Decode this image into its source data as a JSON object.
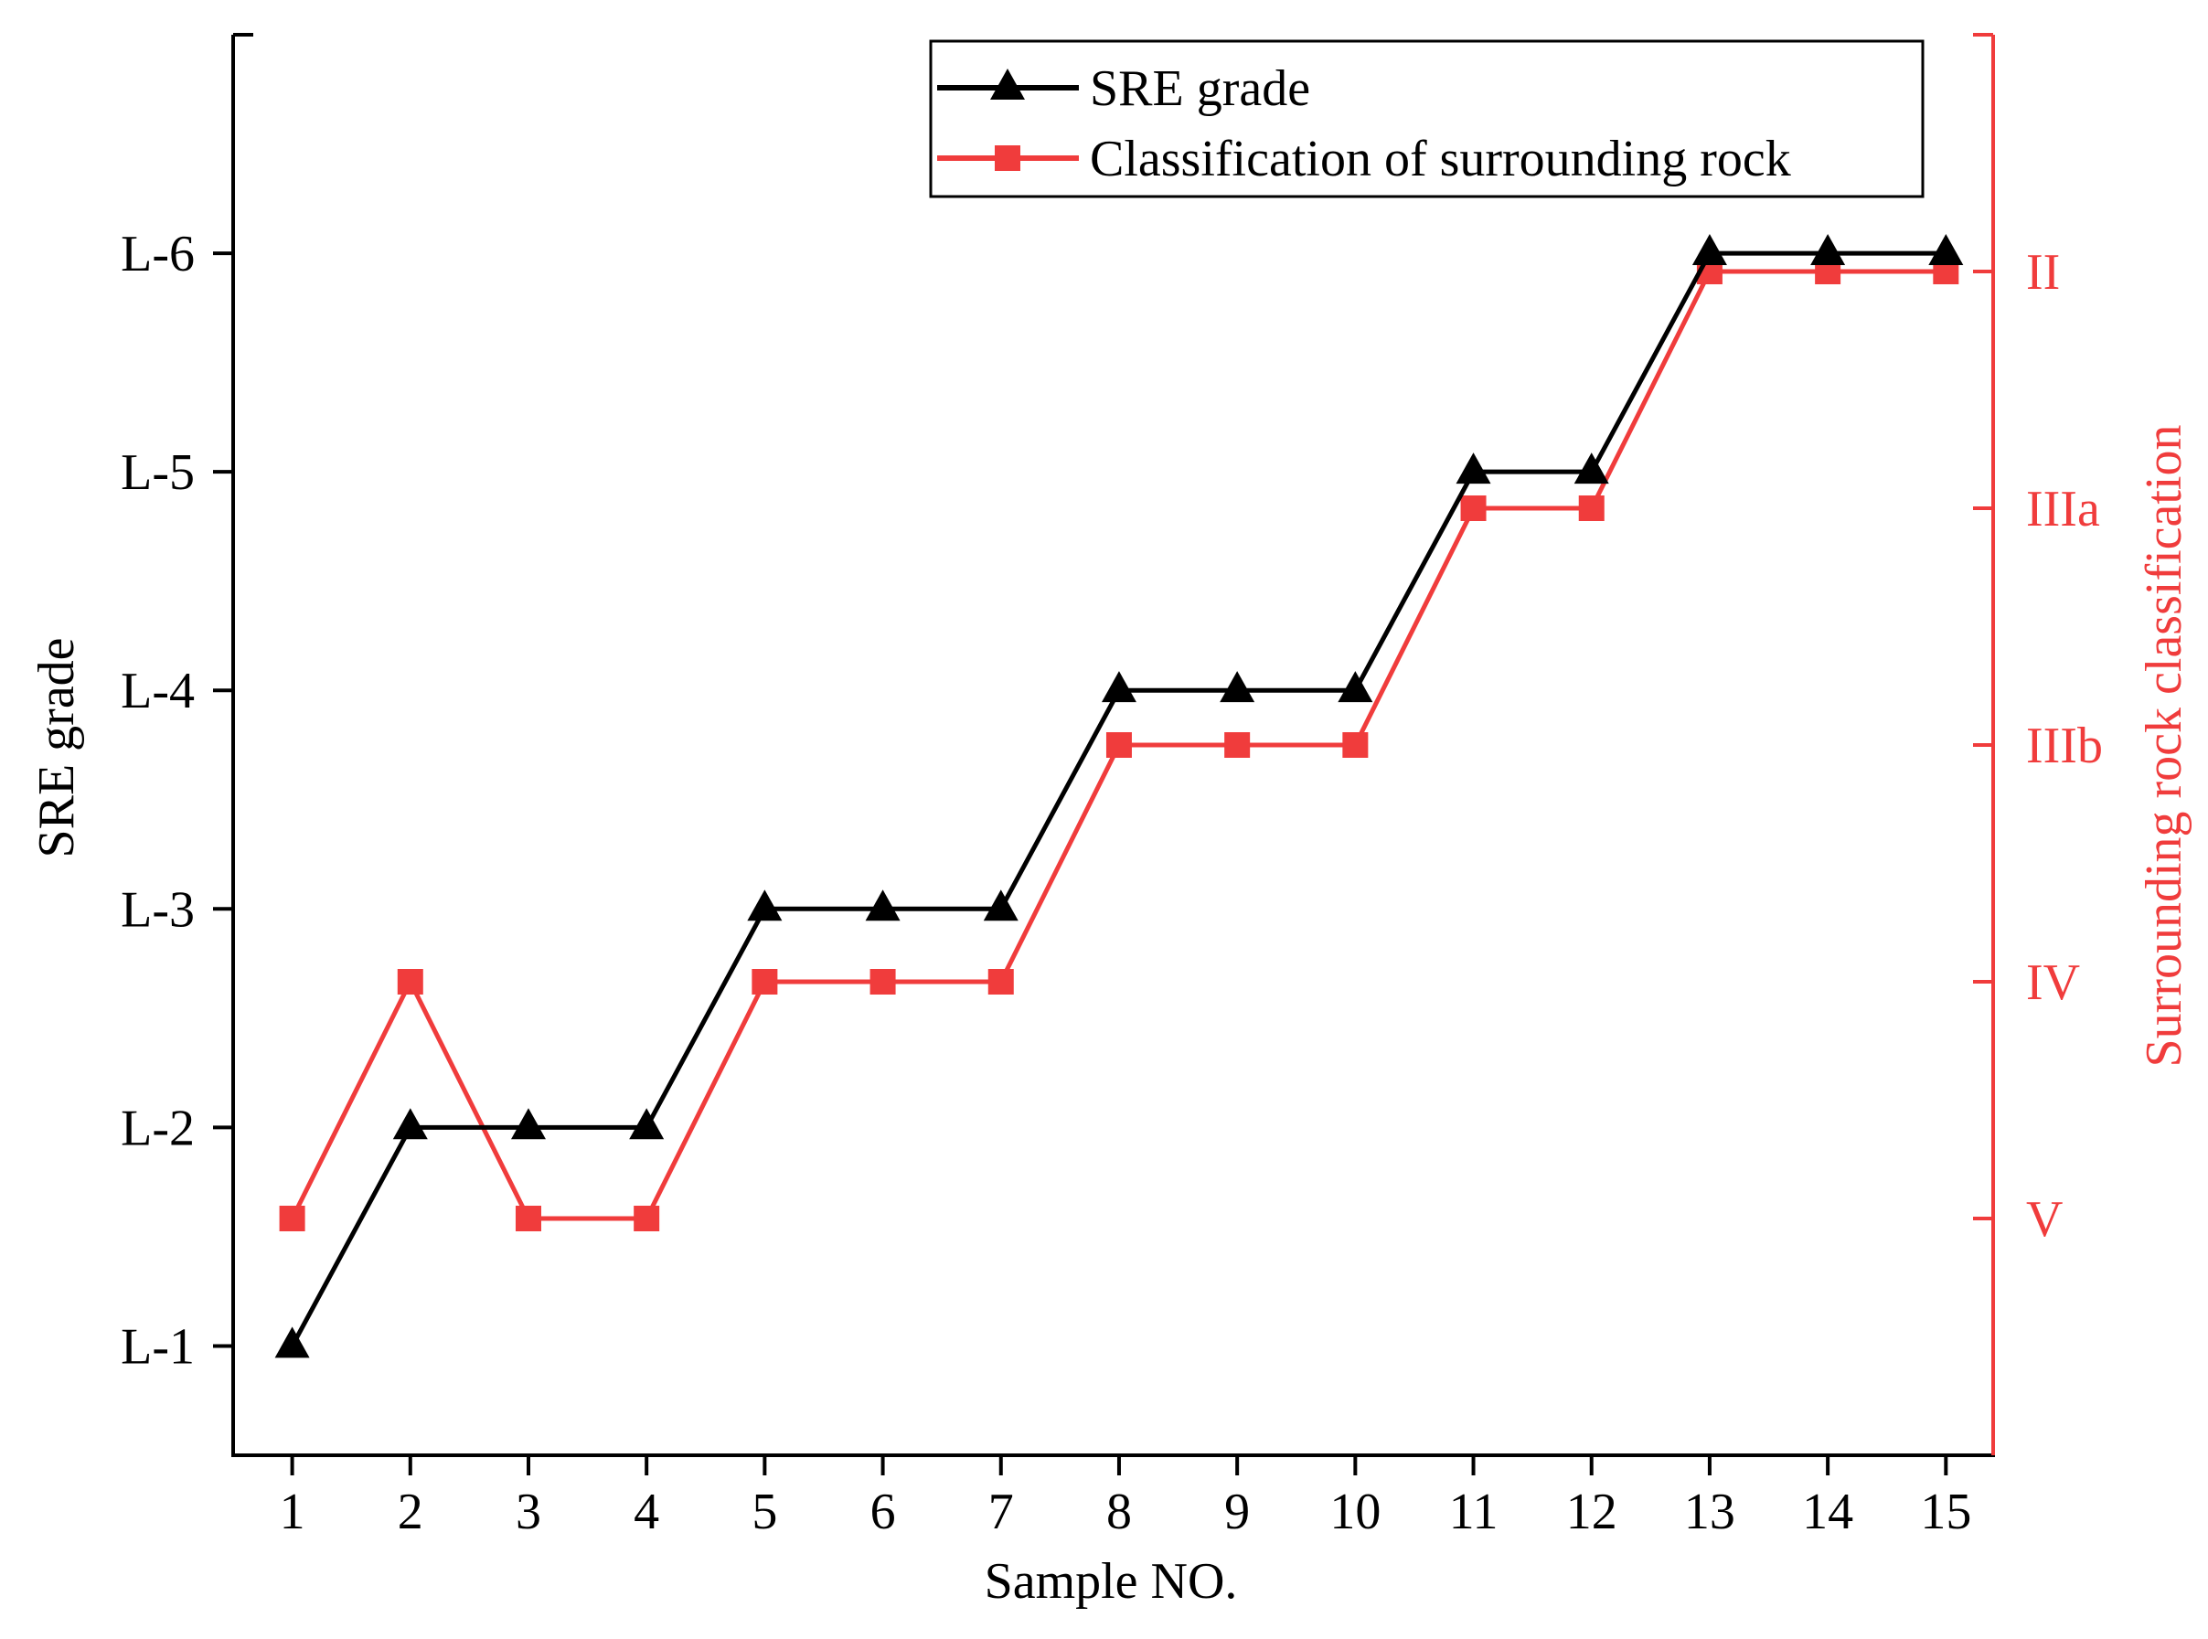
{
  "chart_data": {
    "type": "line",
    "title": "",
    "xlabel": "Sample NO.",
    "ylabel": "SRE grade",
    "y2label": "Surrounding rock classification",
    "x": [
      1,
      2,
      3,
      4,
      5,
      6,
      7,
      8,
      9,
      10,
      11,
      12,
      13,
      14,
      15
    ],
    "x_tick_labels": [
      "1",
      "2",
      "3",
      "4",
      "5",
      "6",
      "7",
      "8",
      "9",
      "10",
      "11",
      "12",
      "13",
      "14",
      "15"
    ],
    "xlim": [
      0.5,
      15.4
    ],
    "y_tick_labels": [
      "L-1",
      "L-2",
      "L-3",
      "L-4",
      "L-5",
      "L-6"
    ],
    "y_tick_values": [
      1,
      2,
      3,
      4,
      5,
      6
    ],
    "ylim": [
      0.5,
      7.0
    ],
    "y2_tick_labels": [
      "V",
      "IV",
      "IIIb",
      "IIIa",
      "II"
    ],
    "y2_tick_values": [
      1,
      2,
      3,
      4,
      5
    ],
    "y2lim": [
      0.0,
      6.0
    ],
    "grid": false,
    "legend_position": "top-right",
    "series": [
      {
        "name": "SRE grade",
        "axis": "left",
        "marker": "triangle",
        "color": "#000000",
        "values": [
          1,
          2,
          2,
          2,
          3,
          3,
          3,
          4,
          4,
          4,
          5,
          5,
          6,
          6,
          6
        ]
      },
      {
        "name": "Classification of surrounding rock",
        "axis": "right",
        "marker": "square",
        "color": "#f03c3c",
        "values": [
          1,
          2,
          1,
          1,
          2,
          2,
          2,
          3,
          3,
          3,
          4,
          4,
          5,
          5,
          5
        ]
      }
    ],
    "colors": {
      "left_axis": "#000000",
      "right_axis": "#f03c3c"
    }
  }
}
